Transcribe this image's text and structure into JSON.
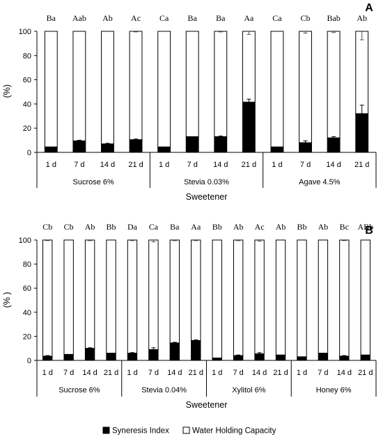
{
  "legend": {
    "si_label": "Syneresis Index",
    "whc_label": "Water Holding Capacity",
    "si_color": "#000000",
    "whc_color": "#ffffff"
  },
  "chart_data": [
    {
      "type": "bar",
      "stacked": true,
      "panel_label": "A",
      "ylabel": "(%)",
      "xlabel": "Sweetener",
      "ylim": [
        0,
        100
      ],
      "yticks": [
        0,
        20,
        40,
        60,
        80,
        100
      ],
      "groups": [
        {
          "name": "Sucrose 6%",
          "categories": [
            "1 d",
            "7 d",
            "14 d",
            "21 d"
          ],
          "syneresis_index": [
            4.5,
            9.5,
            7.0,
            10.5
          ],
          "si_error": [
            0,
            0.5,
            0.5,
            0.5
          ],
          "water_holding_capacity": [
            95.5,
            90.5,
            93.0,
            89.5
          ],
          "whc_error": [
            0,
            0,
            0,
            0.5
          ],
          "letters": [
            "Ba",
            "Aab",
            "Ab",
            "Ac"
          ]
        },
        {
          "name": "Stevia 0.03%",
          "categories": [
            "1 d",
            "7 d",
            "14 d",
            "21 d"
          ],
          "syneresis_index": [
            4.5,
            13.0,
            13.0,
            41.5
          ],
          "si_error": [
            0,
            0,
            0.5,
            2.5
          ],
          "water_holding_capacity": [
            95.5,
            87.0,
            87.0,
            58.5
          ],
          "whc_error": [
            0,
            0,
            0.5,
            2.5
          ],
          "letters": [
            "Ca",
            "Ba",
            "Ba",
            "Aa"
          ]
        },
        {
          "name": "Agave 4.5%",
          "categories": [
            "1 d",
            "7 d",
            "14 d",
            "21 d"
          ],
          "syneresis_index": [
            4.5,
            8.0,
            12.0,
            32.0
          ],
          "si_error": [
            0,
            1.5,
            1.0,
            7.0
          ],
          "water_holding_capacity": [
            95.5,
            92.0,
            88.0,
            68.0
          ],
          "whc_error": [
            0,
            1.5,
            1.0,
            7.0
          ],
          "letters": [
            "Ca",
            "Cb",
            "Bab",
            "Ab"
          ]
        }
      ]
    },
    {
      "type": "bar",
      "stacked": true,
      "panel_label": "B",
      "ylabel": "(% )",
      "xlabel": "Sweetener",
      "ylim": [
        0,
        100
      ],
      "yticks": [
        0,
        20,
        40,
        60,
        80,
        100
      ],
      "groups": [
        {
          "name": "Sucrose 6%",
          "categories": [
            "1 d",
            "7 d",
            "14 d",
            "21 d"
          ],
          "syneresis_index": [
            3.5,
            5.0,
            10.0,
            6.0
          ],
          "si_error": [
            0.5,
            0,
            0.5,
            0
          ],
          "water_holding_capacity": [
            96.5,
            95.0,
            90.0,
            94.0
          ],
          "whc_error": [
            0.5,
            0,
            0.5,
            0
          ],
          "letters": [
            "Cb",
            "Cb",
            "Ab",
            "Bb"
          ]
        },
        {
          "name": "Stevia 0.04%",
          "categories": [
            "1 d",
            "7 d",
            "14 d",
            "21 d"
          ],
          "syneresis_index": [
            6.0,
            9.0,
            14.5,
            16.5
          ],
          "si_error": [
            0.5,
            1.5,
            0.5,
            0.5
          ],
          "water_holding_capacity": [
            94.0,
            91.0,
            85.5,
            83.5
          ],
          "whc_error": [
            0.5,
            1.5,
            0.5,
            0.5
          ],
          "letters": [
            "Da",
            "Ca",
            "Ba",
            "Aa"
          ]
        },
        {
          "name": "Xylitol 6%",
          "categories": [
            "1 d",
            "7 d",
            "14 d",
            "21 d"
          ],
          "syneresis_index": [
            2.0,
            4.0,
            5.5,
            4.5
          ],
          "si_error": [
            0,
            0.5,
            1.0,
            0
          ],
          "water_holding_capacity": [
            98.0,
            96.0,
            94.5,
            95.5
          ],
          "whc_error": [
            0,
            0.5,
            1.0,
            0
          ],
          "letters": [
            "Bb",
            "Ab",
            "Ac",
            "Ab"
          ]
        },
        {
          "name": "Honey 6%",
          "categories": [
            "1 d",
            "7 d",
            "14 d",
            "21 d"
          ],
          "syneresis_index": [
            3.0,
            6.0,
            3.5,
            4.5
          ],
          "si_error": [
            0,
            0,
            0.5,
            0
          ],
          "water_holding_capacity": [
            97.0,
            94.0,
            96.5,
            95.5
          ],
          "whc_error": [
            0,
            0,
            0.5,
            0
          ],
          "letters": [
            "Bb",
            "Ab",
            "Bc",
            "ABb"
          ]
        }
      ]
    }
  ]
}
